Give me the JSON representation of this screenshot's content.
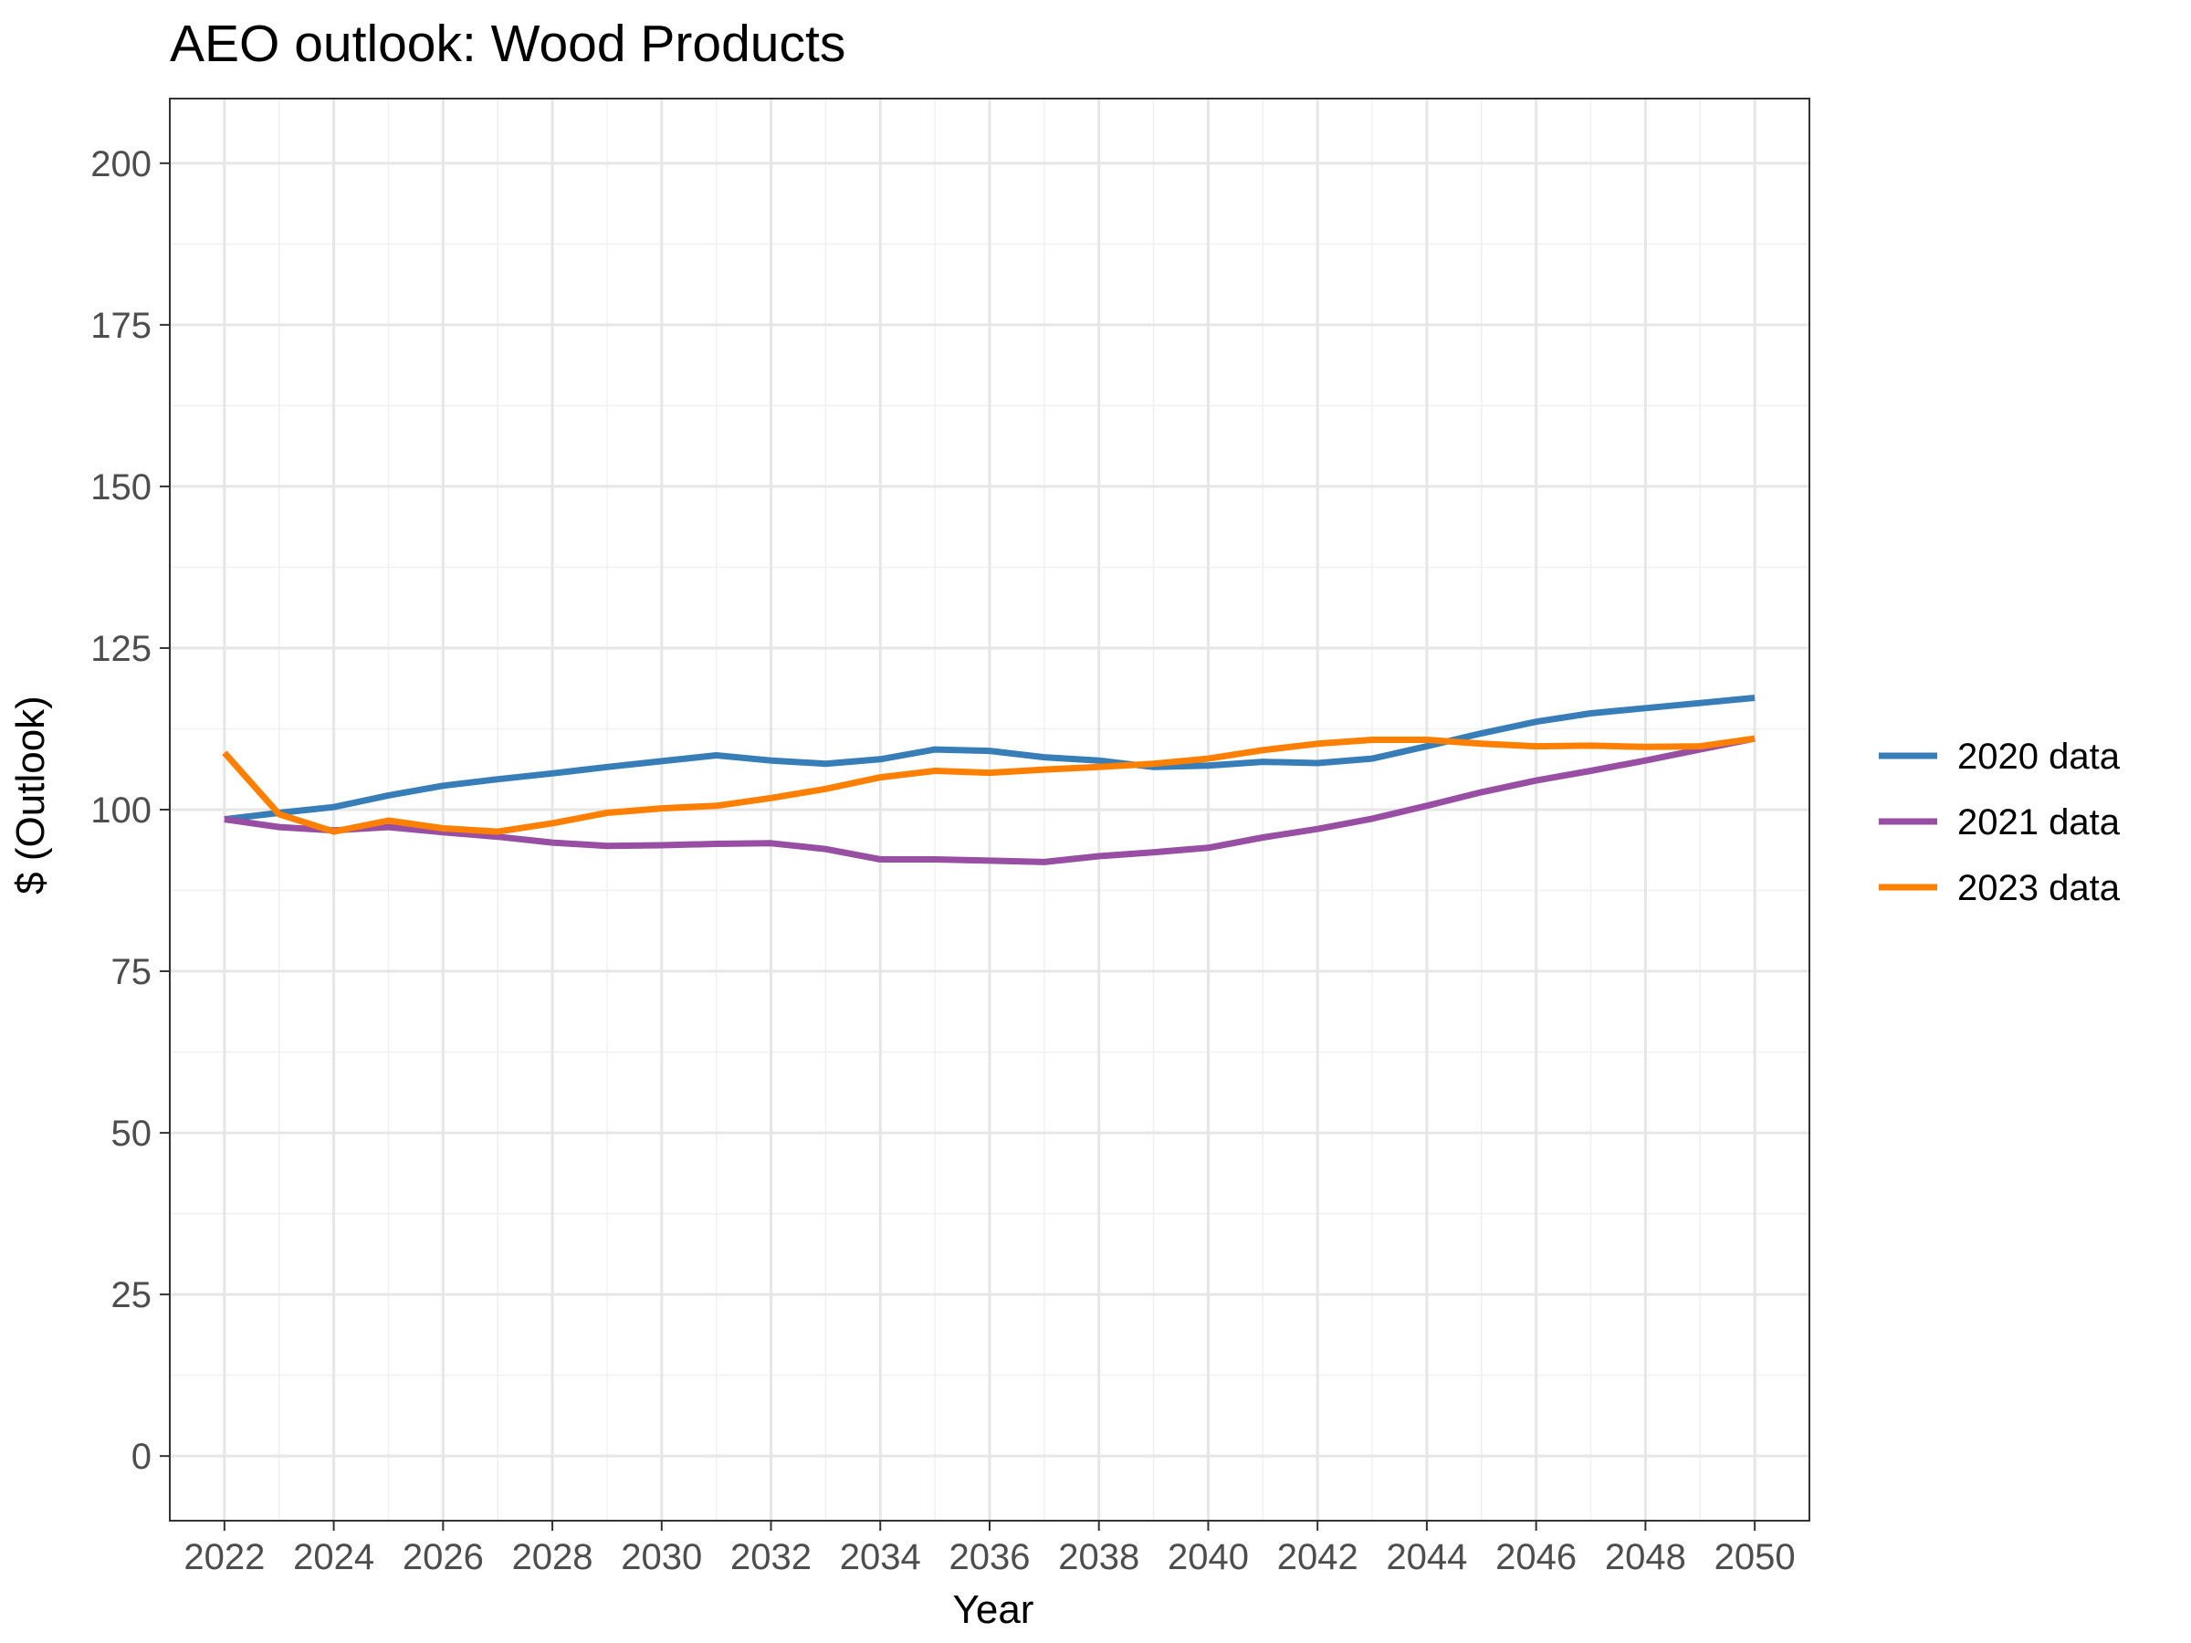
{
  "chart_data": {
    "type": "line",
    "title": "AEO outlook: Wood Products",
    "xlabel": "Year",
    "ylabel": "$ (Outlook)",
    "xlim": [
      2021,
      2051
    ],
    "ylim": [
      -10,
      210
    ],
    "x_ticks": [
      2022,
      2024,
      2026,
      2028,
      2030,
      2032,
      2034,
      2036,
      2038,
      2040,
      2042,
      2044,
      2046,
      2048,
      2050
    ],
    "y_ticks": [
      0,
      25,
      50,
      75,
      100,
      125,
      150,
      175,
      200
    ],
    "grid": true,
    "legend_position": "right",
    "x": [
      2022,
      2023,
      2024,
      2025,
      2026,
      2027,
      2028,
      2029,
      2030,
      2031,
      2032,
      2033,
      2034,
      2035,
      2036,
      2037,
      2038,
      2039,
      2040,
      2041,
      2042,
      2043,
      2044,
      2045,
      2046,
      2047,
      2048,
      2049,
      2050
    ],
    "series": [
      {
        "name": "2020 data",
        "color": "#377eb8",
        "values": [
          98.5,
          99.5,
          100.4,
          102.2,
          103.7,
          104.7,
          105.6,
          106.6,
          107.5,
          108.4,
          107.6,
          107.1,
          107.8,
          109.3,
          109.1,
          108.1,
          107.6,
          106.6,
          106.8,
          107.4,
          107.2,
          107.9,
          109.8,
          111.8,
          113.6,
          114.9,
          115.7,
          116.5,
          117.3
        ]
      },
      {
        "name": "2021 data",
        "color": "#984ea3",
        "values": [
          98.5,
          97.3,
          96.8,
          97.3,
          96.5,
          95.8,
          94.9,
          94.4,
          94.5,
          94.7,
          94.8,
          93.9,
          92.3,
          92.3,
          92.1,
          91.9,
          92.8,
          93.4,
          94.1,
          95.7,
          97.0,
          98.6,
          100.6,
          102.7,
          104.5,
          106.0,
          107.6,
          109.3,
          111.0
        ]
      },
      {
        "name": "2023 data",
        "color": "#ff7f00",
        "values": [
          108.8,
          99.3,
          96.6,
          98.3,
          97.1,
          96.6,
          97.9,
          99.5,
          100.2,
          100.6,
          101.8,
          103.2,
          105.0,
          106.0,
          105.7,
          106.2,
          106.6,
          107.1,
          107.9,
          109.2,
          110.2,
          110.8,
          110.8,
          110.2,
          109.8,
          109.9,
          109.7,
          109.8,
          111.0
        ]
      }
    ]
  }
}
